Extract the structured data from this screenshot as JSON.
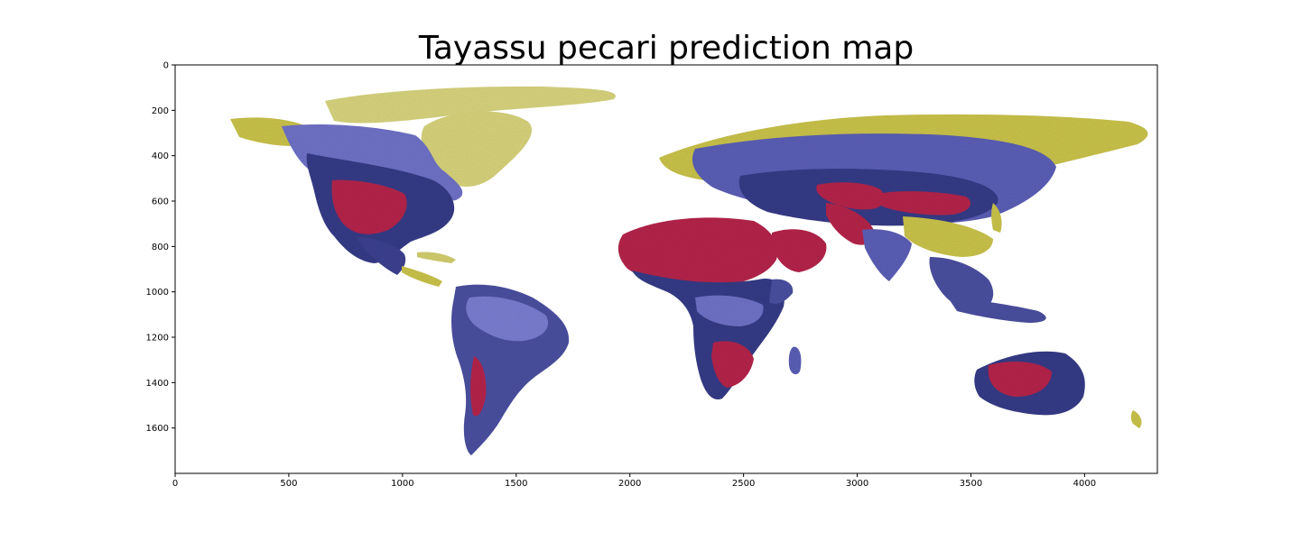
{
  "title": "Tayassu pecari prediction map",
  "chart_data": {
    "type": "heatmap",
    "title": "Tayassu pecari prediction map",
    "xlabel": "",
    "ylabel": "",
    "xlim": [
      0,
      4320
    ],
    "ylim": [
      1800,
      0
    ],
    "x_ticks": [
      0,
      500,
      1000,
      1500,
      2000,
      2500,
      3000,
      3500,
      4000
    ],
    "y_ticks": [
      0,
      200,
      400,
      600,
      800,
      1000,
      1200,
      1400,
      1600
    ],
    "grid": false,
    "colors": {
      "high": "#c0183e",
      "mid": "#3a3f8f",
      "low": "#7b7fd0",
      "edge": "#c9c24a",
      "background": "#ffffff"
    }
  }
}
